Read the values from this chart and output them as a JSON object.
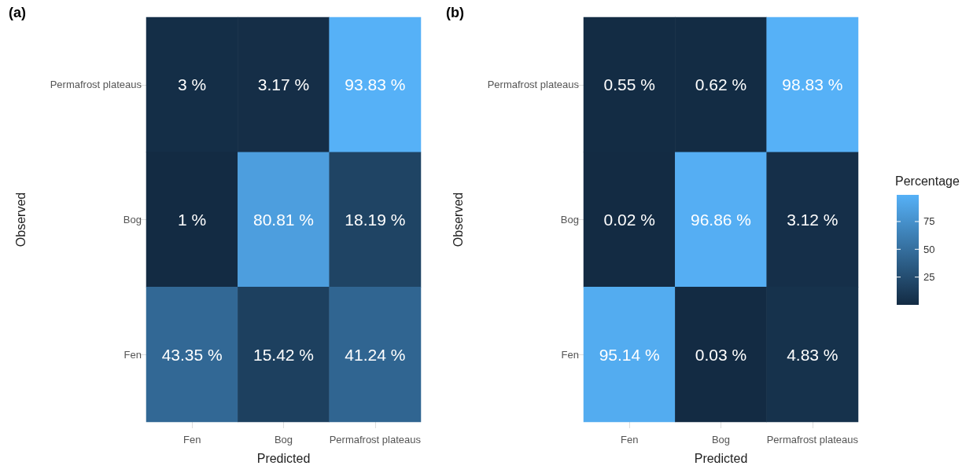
{
  "chart_data": [
    {
      "type": "heatmap",
      "title": "(a)",
      "xlabel": "Predicted",
      "ylabel": "Observed",
      "categories": [
        "Fen",
        "Bog",
        "Permafrost plateaus"
      ],
      "y_categories": [
        "Permafrost plateaus",
        "Bog",
        "Fen"
      ],
      "cells": [
        [
          3,
          3.17,
          93.83
        ],
        [
          1,
          80.81,
          18.19
        ],
        [
          43.35,
          15.42,
          41.24
        ]
      ],
      "cell_labels": [
        [
          "3 %",
          "3.17 %",
          "93.83 %"
        ],
        [
          "1 %",
          "80.81 %",
          "18.19 %"
        ],
        [
          "43.35 %",
          "15.42 %",
          "41.24 %"
        ]
      ]
    },
    {
      "type": "heatmap",
      "title": "(b)",
      "xlabel": "Predicted",
      "ylabel": "Observed",
      "categories": [
        "Fen",
        "Bog",
        "Permafrost plateaus"
      ],
      "y_categories": [
        "Permafrost plateaus",
        "Bog",
        "Fen"
      ],
      "cells": [
        [
          0.55,
          0.62,
          98.83
        ],
        [
          0.02,
          96.86,
          3.12
        ],
        [
          95.14,
          0.03,
          4.83
        ]
      ],
      "cell_labels": [
        [
          "0.55 %",
          "0.62 %",
          "98.83 %"
        ],
        [
          "0.02 %",
          "96.86 %",
          "3.12 %"
        ],
        [
          "95.14 %",
          "0.03 %",
          "4.83 %"
        ]
      ],
      "clabel": "Percentage",
      "clim": [
        0,
        99
      ],
      "cticks": [
        25,
        50,
        75
      ]
    }
  ]
}
